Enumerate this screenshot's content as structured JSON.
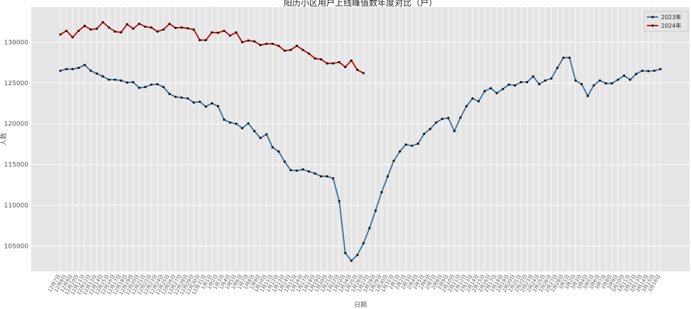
{
  "chart_data": {
    "type": "line",
    "title": "阳历小区用户上线峰值数年度对比（户）",
    "xlabel": "日期",
    "ylabel": "人数",
    "categories": [
      "12月7日",
      "12月8日",
      "12月9日",
      "12月10日",
      "12月11日",
      "12月12日",
      "12月13日",
      "12月14日",
      "12月15日",
      "12月16日",
      "12月17日",
      "12月18日",
      "12月19日",
      "12月20日",
      "12月21日",
      "12月22日",
      "12月23日",
      "12月24日",
      "12月25日",
      "12月26日",
      "12月27日",
      "12月28日",
      "12月29日",
      "12月30日",
      "12月31日",
      "1月1日",
      "1月2日",
      "1月3日",
      "1月4日",
      "1月5日",
      "1月6日",
      "1月7日",
      "1月8日",
      "1月9日",
      "1月10日",
      "1月11日",
      "1月12日",
      "1月13日",
      "1月14日",
      "1月15日",
      "1月16日",
      "1月17日",
      "1月18日",
      "1月19日",
      "1月20日",
      "1月21日",
      "1月22日",
      "1月23日",
      "1月24日",
      "1月25日",
      "1月26日",
      "1月27日",
      "1月28日",
      "1月29日",
      "1月30日",
      "1月31日",
      "2月1日",
      "2月2日",
      "2月3日",
      "2月4日",
      "2月5日",
      "2月6日",
      "2月7日",
      "2月8日",
      "2月9日",
      "2月10日",
      "2月11日",
      "2月12日",
      "2月13日",
      "2月14日",
      "2月15日",
      "2月16日",
      "2月17日",
      "2月18日",
      "2月19日",
      "2月20日",
      "2月21日",
      "2月22日",
      "2月23日",
      "2月24日",
      "2月25日",
      "2月26日",
      "2月27日",
      "2月28日",
      "3月1日",
      "3月2日",
      "3月3日",
      "3月4日",
      "3月5日",
      "3月6日",
      "3月7日",
      "3月8日",
      "3月9日",
      "3月10日",
      "3月11日",
      "3月12日",
      "3月13日",
      "3月14日",
      "3月15日",
      "3月16日"
    ],
    "series": [
      {
        "name": "2023年",
        "color": "#3d6e9e",
        "values": [
          126500,
          126700,
          126700,
          126850,
          127200,
          126500,
          126150,
          125800,
          125400,
          125400,
          125300,
          125050,
          125100,
          124400,
          124500,
          124800,
          124850,
          124500,
          123650,
          123300,
          123200,
          123100,
          122600,
          122700,
          122100,
          122500,
          122150,
          120500,
          120150,
          120000,
          119450,
          120050,
          119100,
          118250,
          118700,
          117100,
          116600,
          115350,
          114300,
          114250,
          114400,
          114150,
          113900,
          113550,
          113550,
          113300,
          110500,
          104150,
          103200,
          103900,
          105350,
          107200,
          109350,
          111600,
          113550,
          115450,
          116600,
          117450,
          117300,
          117550,
          118750,
          119350,
          120150,
          120600,
          120700,
          119100,
          120750,
          122150,
          123100,
          122750,
          124000,
          124350,
          123750,
          124250,
          124800,
          124700,
          125100,
          125100,
          125800,
          124850,
          125300,
          125550,
          126850,
          128100,
          128100,
          125300,
          124850,
          123400,
          124700,
          125300,
          124950,
          124950,
          125400,
          125900,
          125400,
          126100,
          126500,
          126450,
          126500,
          126700
        ]
      },
      {
        "name": "2024年",
        "color": "#cc0000",
        "values": [
          130950,
          131400,
          130600,
          131400,
          132000,
          131550,
          131650,
          132450,
          131800,
          131300,
          131200,
          132200,
          131650,
          132250,
          131900,
          131800,
          131300,
          131550,
          132250,
          131750,
          131800,
          131700,
          131550,
          130250,
          130250,
          131200,
          131150,
          131400,
          130800,
          131200,
          130000,
          130200,
          130100,
          129650,
          129800,
          129800,
          129550,
          128950,
          129050,
          129550,
          129050,
          128600,
          128000,
          127900,
          127400,
          127400,
          127550,
          126950,
          127750,
          126600,
          126200,
          null,
          null,
          null,
          null,
          null,
          null,
          null,
          null,
          null,
          null,
          null,
          null,
          null,
          null,
          null,
          null,
          null,
          null,
          null,
          null,
          null,
          null,
          null,
          null,
          null,
          null,
          null,
          null,
          null,
          null,
          null,
          null,
          null,
          null,
          null,
          null,
          null,
          null,
          null,
          null,
          null,
          null,
          null,
          null,
          null,
          null,
          null,
          null,
          null
        ]
      }
    ],
    "ylim": [
      101900,
      134300
    ],
    "yticks": [
      105000,
      110000,
      115000,
      120000,
      125000,
      130000
    ],
    "grid": true,
    "legend": "upper right"
  }
}
